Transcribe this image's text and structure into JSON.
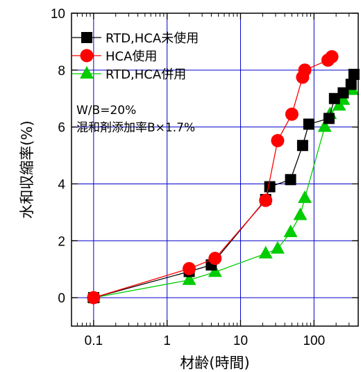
{
  "chart_data": {
    "type": "line",
    "xscale": "log",
    "xlim": [
      0.05,
      400
    ],
    "ylim": [
      -1,
      10
    ],
    "xticks": [
      "0.1",
      "1",
      "10",
      "100"
    ],
    "yticks": [
      "0",
      "2",
      "4",
      "6",
      "8",
      "10"
    ],
    "xlabel": "材齢(時間)",
    "ylabel": "水和収縮率(%)",
    "grid": true,
    "legend_position": "top-left",
    "annotations": [
      "W/B=20%",
      "混和剤添加率B×1.7%"
    ],
    "series": [
      {
        "name": "RTD,HCA未使用",
        "color": "#000000",
        "marker": "square",
        "x": [
          0.1,
          2,
          4,
          22,
          25,
          48,
          70,
          85,
          160,
          190,
          250,
          320,
          350
        ],
        "y": [
          0.0,
          0.92,
          1.15,
          3.45,
          3.9,
          4.15,
          5.35,
          6.1,
          6.3,
          7.0,
          7.2,
          7.5,
          7.85
        ]
      },
      {
        "name": "HCA使用",
        "color": "#ff0000",
        "marker": "circle",
        "x": [
          0.1,
          2,
          4.5,
          22,
          32,
          50,
          70,
          75,
          155,
          175
        ],
        "y": [
          0.0,
          1.02,
          1.38,
          3.42,
          5.52,
          6.45,
          7.75,
          8.0,
          8.35,
          8.47
        ]
      },
      {
        "name": "RTD,HCA併用",
        "color": "#00cc00",
        "marker": "triangle",
        "x": [
          0.1,
          2,
          4.5,
          22,
          32,
          48,
          65,
          75,
          140,
          165,
          220,
          250,
          330
        ],
        "y": [
          0.0,
          0.62,
          0.9,
          1.55,
          1.72,
          2.3,
          2.9,
          3.5,
          6.0,
          6.45,
          6.75,
          6.95,
          7.3
        ]
      }
    ]
  }
}
